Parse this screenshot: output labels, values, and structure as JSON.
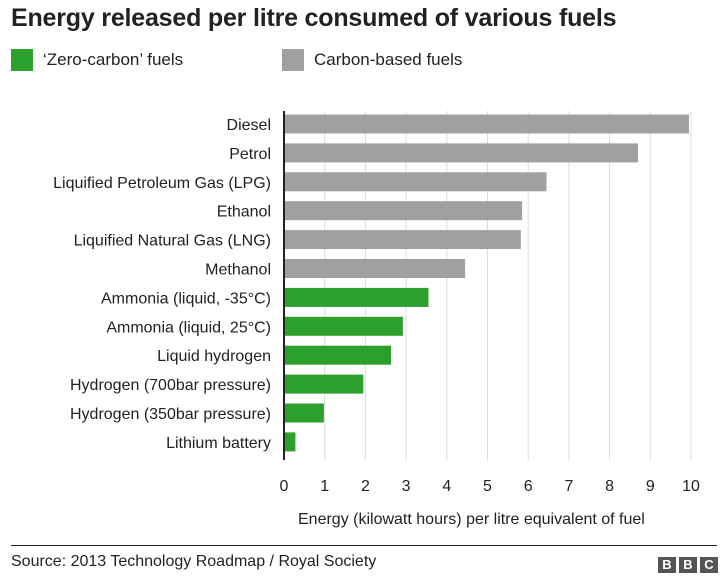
{
  "title": "Energy released per litre consumed of various fuels",
  "legend": {
    "zero_carbon": {
      "label": "‘Zero-carbon’ fuels",
      "color": "#2ca02c"
    },
    "carbon": {
      "label": "Carbon-based fuels",
      "color": "#a0a0a0"
    }
  },
  "source": "Source: 2013 Technology Roadmap / Royal Society",
  "logo": [
    "B",
    "B",
    "C"
  ],
  "chart_data": {
    "type": "bar",
    "orientation": "horizontal",
    "title": "Energy released per litre consumed of various fuels",
    "xlabel": "Energy (kilowatt hours) per litre equivalent of fuel",
    "ylabel": "",
    "xlim": [
      0,
      10
    ],
    "ticks": [
      "0",
      "1",
      "2",
      "3",
      "4",
      "5",
      "6",
      "7",
      "8",
      "9",
      "10"
    ],
    "grid": true,
    "legend_position": "top-left",
    "categories": [
      "Diesel",
      "Petrol",
      "Liquified Petroleum Gas (LPG)",
      "Ethanol",
      "Liquified Natural Gas (LNG)",
      "Methanol",
      "Ammonia (liquid, -35°C)",
      "Ammonia (liquid, 25°C)",
      "Liquid hydrogen",
      "Hydrogen (700bar pressure)",
      "Hydrogen (350bar pressure)",
      "Lithium battery"
    ],
    "values": [
      9.95,
      8.7,
      6.45,
      5.85,
      5.82,
      4.45,
      3.55,
      2.92,
      2.63,
      1.95,
      0.98,
      0.28
    ],
    "groups": [
      "carbon",
      "carbon",
      "carbon",
      "carbon",
      "carbon",
      "carbon",
      "zero_carbon",
      "zero_carbon",
      "zero_carbon",
      "zero_carbon",
      "zero_carbon",
      "zero_carbon"
    ],
    "colors": {
      "carbon": "#a0a0a0",
      "zero_carbon": "#2ca02c"
    }
  }
}
